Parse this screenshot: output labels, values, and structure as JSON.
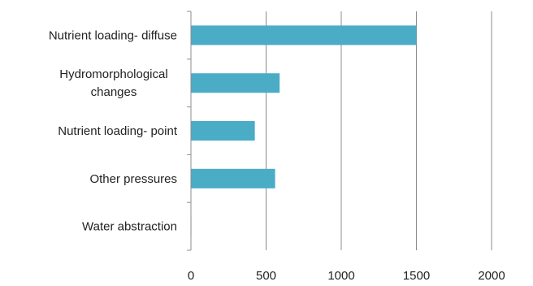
{
  "chart_data": {
    "type": "bar",
    "orientation": "horizontal",
    "categories": [
      [
        "Nutrient loading- diffuse"
      ],
      [
        "Hydromorphological",
        "changes"
      ],
      [
        "Nutrient loading- point"
      ],
      [
        "Other pressures"
      ],
      [
        "Water abstraction"
      ]
    ],
    "values": [
      1500,
      590,
      425,
      560,
      3
    ],
    "xlim": [
      0,
      2000
    ],
    "xticks": [
      0,
      500,
      1000,
      1500,
      2000
    ],
    "grid": "vertical",
    "bar_color": "#4bacc6",
    "title": "",
    "xlabel": "",
    "ylabel": ""
  }
}
